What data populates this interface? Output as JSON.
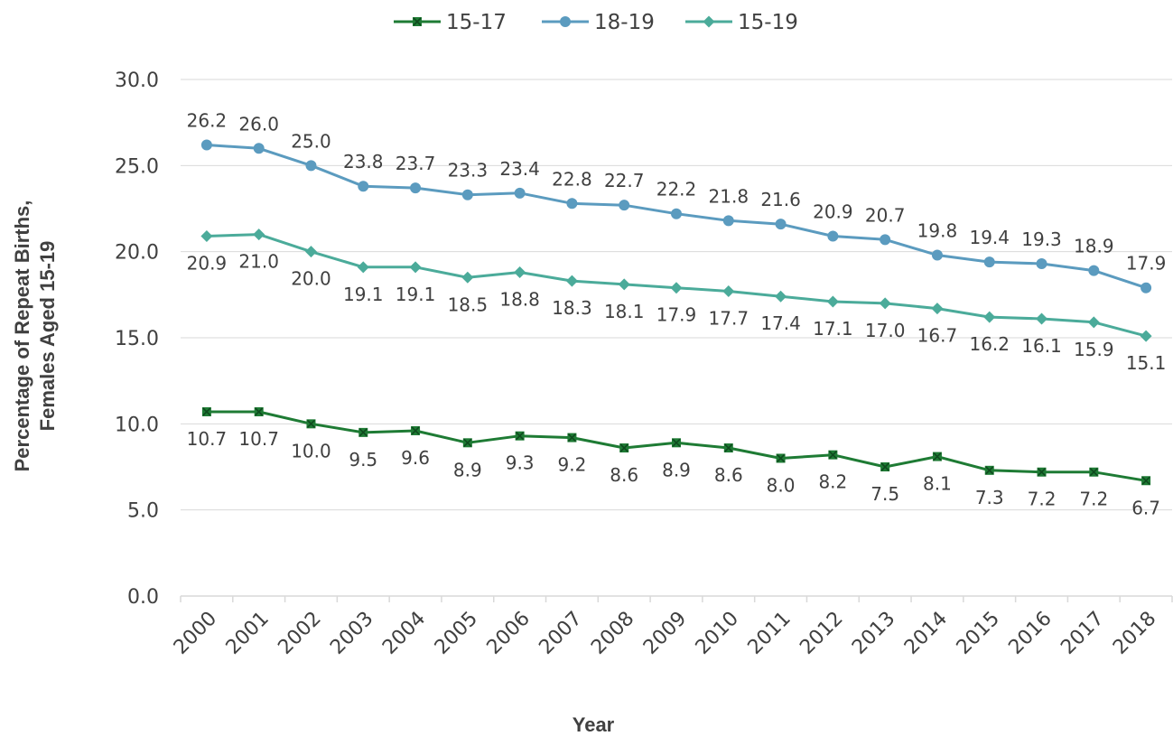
{
  "chart_data": {
    "type": "line",
    "xlabel": "Year",
    "ylabel_lines": [
      "Percentage of Repeat Births,",
      "Females Aged 15-19"
    ],
    "ylim": [
      0,
      30
    ],
    "yticks": [
      "0.0",
      "5.0",
      "10.0",
      "15.0",
      "20.0",
      "25.0",
      "30.0"
    ],
    "grid": true,
    "legend_position": "top",
    "categories": [
      "2000",
      "2001",
      "2002",
      "2003",
      "2004",
      "2005",
      "2006",
      "2007",
      "2008",
      "2009",
      "2010",
      "2011",
      "2012",
      "2013",
      "2014",
      "2015",
      "2016",
      "2017",
      "2018"
    ],
    "series": [
      {
        "name": "15-17",
        "color": "#1e7b34",
        "marker": "x-square",
        "label_position": "below",
        "values": [
          10.7,
          10.7,
          10.0,
          9.5,
          9.6,
          8.9,
          9.3,
          9.2,
          8.6,
          8.9,
          8.6,
          8.0,
          8.2,
          7.5,
          8.1,
          7.3,
          7.2,
          7.2,
          6.7
        ]
      },
      {
        "name": "18-19",
        "color": "#5b9bbf",
        "marker": "circle",
        "label_position": "above",
        "values": [
          26.2,
          26.0,
          25.0,
          23.8,
          23.7,
          23.3,
          23.4,
          22.8,
          22.7,
          22.2,
          21.8,
          21.6,
          20.9,
          20.7,
          19.8,
          19.4,
          19.3,
          18.9,
          17.9
        ]
      },
      {
        "name": "15-19",
        "color": "#4bab9a",
        "marker": "diamond",
        "label_position": "below",
        "values": [
          20.9,
          21.0,
          20.0,
          19.1,
          19.1,
          18.5,
          18.8,
          18.3,
          18.1,
          17.9,
          17.7,
          17.4,
          17.1,
          17.0,
          16.7,
          16.2,
          16.1,
          15.9,
          15.1
        ]
      }
    ]
  }
}
